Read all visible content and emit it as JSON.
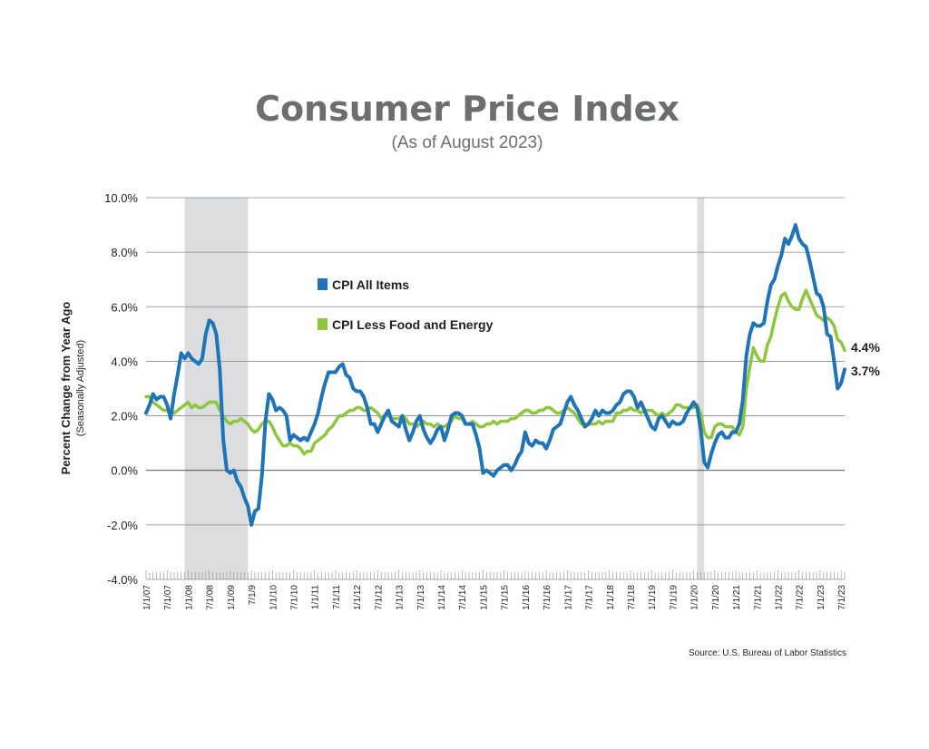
{
  "chart_data": {
    "type": "line",
    "title": "Consumer Price Index",
    "subtitle": "(As of August 2023)",
    "ylabel": "Percent Change from Year Ago",
    "ylabel_sub": "(Seasonally Adjusted)",
    "source": "Source: U.S. Bureau of Labor Statistics",
    "ylim": [
      -4,
      10
    ],
    "yticks": [
      -4,
      -2,
      0,
      2,
      4,
      6,
      8,
      10
    ],
    "ytick_labels": [
      "-4.0%",
      "-2.0%",
      "0.0%",
      "2.0%",
      "4.0%",
      "6.0%",
      "8.0%",
      "10.0%"
    ],
    "x_start": "2007-01",
    "x_end": "2023-08",
    "x_tick_labels": [
      "1/1/07",
      "7/1/07",
      "1/1/08",
      "7/1/08",
      "1/1/09",
      "7/1/9",
      "1/1/10",
      "7/1/10",
      "1/1/11",
      "7/1/11",
      "1/1/12",
      "7/1/12",
      "1/1/13",
      "7/1/13",
      "1/1/14",
      "7/1/14",
      "1/1/15",
      "7/1/15",
      "1/1/16",
      "7/1/16",
      "1/1/17",
      "7/1/17",
      "1/1/18",
      "7/1/18",
      "1/1/19",
      "7/1/19",
      "1/1/20",
      "7/1/20",
      "1/1/21",
      "7/1/21",
      "1/1/22",
      "7/1/22",
      "1/1/23",
      "7/1/23"
    ],
    "recessions": [
      {
        "start": "2007-12",
        "end": "2009-06"
      },
      {
        "start": "2020-02",
        "end": "2020-04"
      }
    ],
    "grid": true,
    "legend_position": "upper-left inside",
    "series": [
      {
        "name": "CPI All Items",
        "color": "#1f73b7",
        "end_label": "3.7%",
        "values": [
          2.1,
          2.4,
          2.8,
          2.6,
          2.7,
          2.7,
          2.4,
          1.9,
          2.8,
          3.5,
          4.3,
          4.1,
          4.3,
          4.1,
          4.0,
          3.9,
          4.1,
          5.0,
          5.5,
          5.4,
          5.0,
          3.7,
          1.1,
          0.0,
          -0.1,
          0.0,
          -0.4,
          -0.6,
          -1.0,
          -1.3,
          -2.0,
          -1.5,
          -1.4,
          -0.2,
          1.8,
          2.8,
          2.6,
          2.2,
          2.3,
          2.2,
          2.0,
          1.1,
          1.3,
          1.2,
          1.1,
          1.2,
          1.1,
          1.4,
          1.7,
          2.1,
          2.7,
          3.2,
          3.6,
          3.6,
          3.6,
          3.8,
          3.9,
          3.5,
          3.4,
          3.0,
          2.9,
          2.9,
          2.7,
          2.3,
          1.7,
          1.7,
          1.4,
          1.7,
          2.0,
          2.2,
          1.8,
          1.7,
          1.6,
          2.0,
          1.5,
          1.1,
          1.4,
          1.8,
          2.0,
          1.5,
          1.2,
          1.0,
          1.2,
          1.5,
          1.6,
          1.1,
          1.5,
          2.0,
          2.1,
          2.1,
          2.0,
          1.7,
          1.7,
          1.7,
          1.3,
          0.8,
          -0.1,
          0.0,
          -0.1,
          -0.2,
          0.0,
          0.1,
          0.2,
          0.2,
          0.0,
          0.2,
          0.5,
          0.7,
          1.4,
          1.0,
          0.9,
          1.1,
          1.0,
          1.0,
          0.8,
          1.1,
          1.5,
          1.6,
          1.7,
          2.1,
          2.5,
          2.7,
          2.4,
          2.2,
          1.9,
          1.6,
          1.7,
          1.9,
          2.2,
          2.0,
          2.2,
          2.1,
          2.1,
          2.2,
          2.4,
          2.5,
          2.8,
          2.9,
          2.9,
          2.7,
          2.3,
          2.5,
          2.2,
          1.9,
          1.6,
          1.5,
          1.9,
          2.0,
          1.8,
          1.6,
          1.8,
          1.7,
          1.7,
          1.8,
          2.1,
          2.3,
          2.5,
          2.3,
          1.5,
          0.3,
          0.1,
          0.6,
          1.0,
          1.3,
          1.4,
          1.2,
          1.2,
          1.4,
          1.4,
          1.7,
          2.6,
          4.2,
          5.0,
          5.4,
          5.3,
          5.3,
          5.4,
          6.2,
          6.8,
          7.0,
          7.5,
          7.9,
          8.5,
          8.3,
          8.6,
          9.0,
          8.5,
          8.3,
          8.2,
          7.7,
          7.1,
          6.5,
          6.4,
          6.0,
          5.0,
          4.9,
          4.0,
          3.0,
          3.2,
          3.7
        ]
      },
      {
        "name": "CPI Less Food and Energy",
        "color": "#8dc63f",
        "end_label": "4.4%",
        "values": [
          2.7,
          2.7,
          2.5,
          2.4,
          2.3,
          2.2,
          2.2,
          2.1,
          2.1,
          2.2,
          2.3,
          2.4,
          2.5,
          2.3,
          2.4,
          2.3,
          2.3,
          2.4,
          2.5,
          2.5,
          2.5,
          2.2,
          2.0,
          1.8,
          1.7,
          1.8,
          1.8,
          1.9,
          1.8,
          1.7,
          1.5,
          1.4,
          1.5,
          1.7,
          1.8,
          1.8,
          1.6,
          1.3,
          1.1,
          0.9,
          0.9,
          1.0,
          0.9,
          0.9,
          0.8,
          0.6,
          0.7,
          0.7,
          1.0,
          1.1,
          1.2,
          1.3,
          1.5,
          1.6,
          1.8,
          2.0,
          2.0,
          2.1,
          2.2,
          2.2,
          2.3,
          2.3,
          2.2,
          2.2,
          2.3,
          2.2,
          2.1,
          1.9,
          2.0,
          2.0,
          1.9,
          1.9,
          1.9,
          2.0,
          1.9,
          1.7,
          1.7,
          1.6,
          1.7,
          1.8,
          1.7,
          1.7,
          1.6,
          1.7,
          1.6,
          1.6,
          1.7,
          1.8,
          2.0,
          1.9,
          1.9,
          1.7,
          1.7,
          1.8,
          1.7,
          1.6,
          1.6,
          1.7,
          1.7,
          1.8,
          1.7,
          1.8,
          1.8,
          1.8,
          1.9,
          1.9,
          2.0,
          2.1,
          2.2,
          2.2,
          2.1,
          2.1,
          2.2,
          2.2,
          2.3,
          2.3,
          2.2,
          2.1,
          2.1,
          2.2,
          2.3,
          2.2,
          2.1,
          1.9,
          1.7,
          1.7,
          1.7,
          1.7,
          1.7,
          1.8,
          1.7,
          1.8,
          1.8,
          1.8,
          2.1,
          2.1,
          2.2,
          2.2,
          2.3,
          2.2,
          2.2,
          2.1,
          2.2,
          2.2,
          2.2,
          2.1,
          2.0,
          2.1,
          2.0,
          2.1,
          2.2,
          2.4,
          2.4,
          2.3,
          2.3,
          2.3,
          2.3,
          2.4,
          2.1,
          1.4,
          1.2,
          1.2,
          1.6,
          1.7,
          1.7,
          1.6,
          1.6,
          1.6,
          1.4,
          1.3,
          1.6,
          3.0,
          3.8,
          4.5,
          4.2,
          4.0,
          4.0,
          4.6,
          4.9,
          5.5,
          6.0,
          6.4,
          6.5,
          6.2,
          6.0,
          5.9,
          5.9,
          6.3,
          6.6,
          6.3,
          6.0,
          5.7,
          5.6,
          5.5,
          5.6,
          5.5,
          5.3,
          4.8,
          4.7,
          4.4
        ]
      }
    ]
  }
}
